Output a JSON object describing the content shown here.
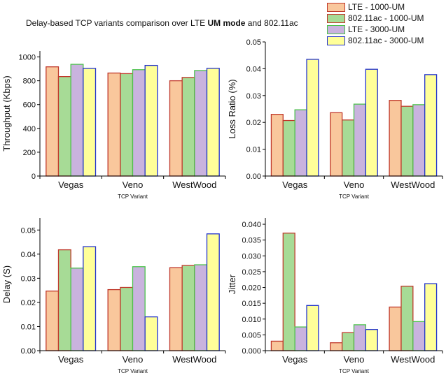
{
  "figure": {
    "title_prefix": "Delay-based TCP variants comparison over LTE ",
    "title_bold": "UM mode",
    "title_suffix": " and 802.11ac"
  },
  "legend": [
    {
      "name": "LTE - 1000-UM",
      "fill": "#F9C79C",
      "stroke": "#C0392B"
    },
    {
      "name": "802.11ac - 1000-UM",
      "fill": "#A7DB96",
      "stroke": "#C0392B"
    },
    {
      "name": "LTE - 3000-UM",
      "fill": "#C9B3DE",
      "stroke": "#4CC24C"
    },
    {
      "name": "802.11ac - 3000-UM",
      "fill": "#FFFF99",
      "stroke": "#2233CC"
    }
  ],
  "chart_data": [
    {
      "type": "bar",
      "categories": [
        "Vegas",
        "Veno",
        "WestWood"
      ],
      "series": [
        {
          "name": "LTE - 1000-UM",
          "values": [
            917,
            865,
            800
          ]
        },
        {
          "name": "802.11ac - 1000-UM",
          "values": [
            835,
            860,
            828
          ]
        },
        {
          "name": "LTE - 3000-UM",
          "values": [
            938,
            893,
            886
          ]
        },
        {
          "name": "802.11ac - 3000-UM",
          "values": [
            904,
            929,
            905
          ]
        }
      ],
      "xlabel": "TCP Variant",
      "ylabel": "Throughput (Kbps)",
      "ylim": [
        0,
        1050
      ],
      "yticks": [
        0,
        200,
        400,
        600,
        800,
        1000
      ],
      "ytick_labels": [
        "0",
        "200",
        "400",
        "600",
        "800",
        "1000"
      ]
    },
    {
      "type": "bar",
      "categories": [
        "Vegas",
        "Veno",
        "WestWood"
      ],
      "series": [
        {
          "name": "LTE - 1000-UM",
          "values": [
            0.023,
            0.0236,
            0.0282
          ]
        },
        {
          "name": "802.11ac - 1000-UM",
          "values": [
            0.0207,
            0.0209,
            0.026
          ]
        },
        {
          "name": "LTE - 3000-UM",
          "values": [
            0.0247,
            0.0268,
            0.0266
          ]
        },
        {
          "name": "802.11ac - 3000-UM",
          "values": [
            0.0435,
            0.0398,
            0.0378
          ]
        }
      ],
      "xlabel": "TCP Variant",
      "ylabel": "Loss Ratio (%)",
      "ylim": [
        0,
        0.05
      ],
      "yticks": [
        0,
        0.01,
        0.02,
        0.03,
        0.04,
        0.05
      ],
      "ytick_labels": [
        "0.00",
        "0.01",
        "0.02",
        "0.03",
        "0.04",
        "0.05"
      ]
    },
    {
      "type": "bar",
      "categories": [
        "Vegas",
        "Veno",
        "WestWood"
      ],
      "series": [
        {
          "name": "LTE - 1000-UM",
          "values": [
            0.0247,
            0.0253,
            0.0344
          ]
        },
        {
          "name": "802.11ac - 1000-UM",
          "values": [
            0.0418,
            0.0262,
            0.0353
          ]
        },
        {
          "name": "LTE - 3000-UM",
          "values": [
            0.0342,
            0.0348,
            0.0356
          ]
        },
        {
          "name": "802.11ac - 3000-UM",
          "values": [
            0.0431,
            0.014,
            0.0484
          ]
        }
      ],
      "xlabel": "TCP Variant",
      "ylabel": "Delay (S)",
      "ylim": [
        0,
        0.055
      ],
      "yticks": [
        0,
        0.01,
        0.02,
        0.03,
        0.04,
        0.05
      ],
      "ytick_labels": [
        "0.00",
        "0.01",
        "0.02",
        "0.03",
        "0.04",
        "0.05"
      ]
    },
    {
      "type": "bar",
      "categories": [
        "Vegas",
        "Veno",
        "WestWood"
      ],
      "series": [
        {
          "name": "LTE - 1000-UM",
          "values": [
            0.003,
            0.0025,
            0.0138
          ]
        },
        {
          "name": "802.11ac - 1000-UM",
          "values": [
            0.0372,
            0.0057,
            0.0204
          ]
        },
        {
          "name": "LTE - 3000-UM",
          "values": [
            0.0075,
            0.0082,
            0.0092
          ]
        },
        {
          "name": "802.11ac - 3000-UM",
          "values": [
            0.0143,
            0.0067,
            0.0212
          ]
        }
      ],
      "xlabel": "TCP Variant",
      "ylabel": "Jitter",
      "ylim": [
        0,
        0.042
      ],
      "yticks": [
        0,
        0.005,
        0.01,
        0.015,
        0.02,
        0.025,
        0.03,
        0.035,
        0.04
      ],
      "ytick_labels": [
        "0.000",
        "0.005",
        "0.010",
        "0.015",
        "0.020",
        "0.025",
        "0.030",
        "0.035",
        "0.040"
      ]
    }
  ]
}
